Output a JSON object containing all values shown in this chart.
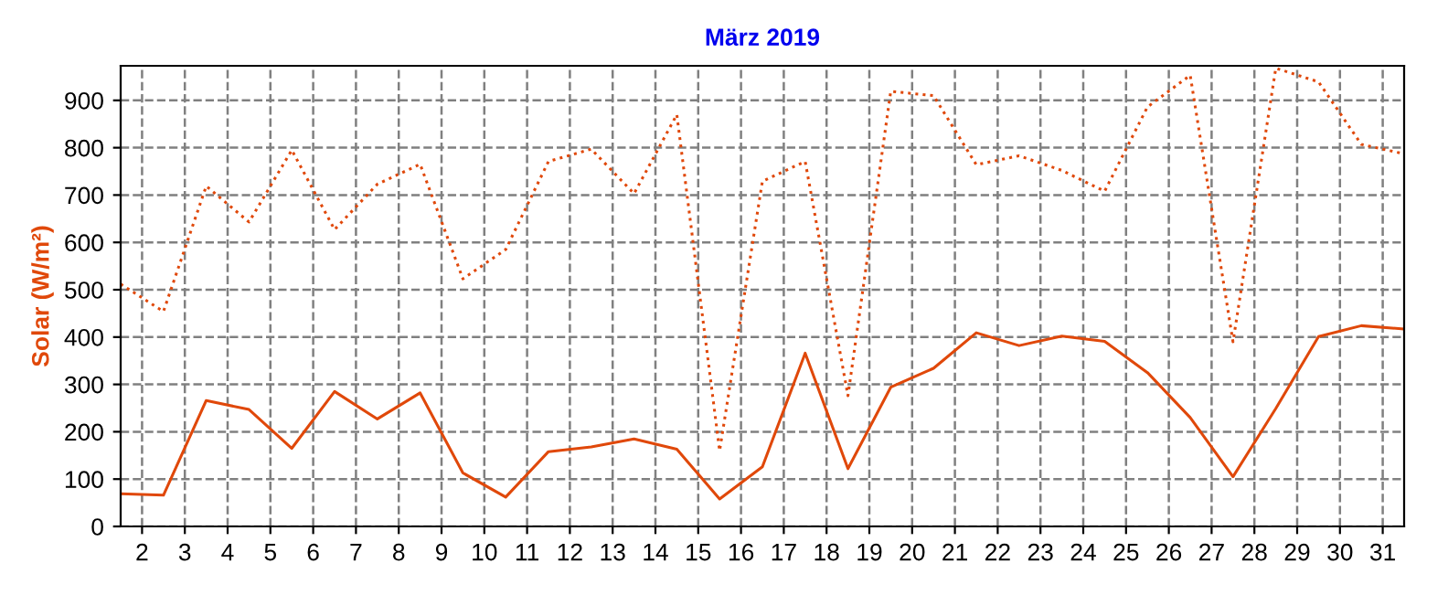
{
  "chart_data": {
    "type": "line",
    "title": "März 2019",
    "ylabel": "Solar (W/m²)",
    "x": [
      1.5,
      2.5,
      3.5,
      4.5,
      5.5,
      6.5,
      7.5,
      8.5,
      9.5,
      10.5,
      11.5,
      12.5,
      13.5,
      14.5,
      15.5,
      16.5,
      17.5,
      18.5,
      19.5,
      20.5,
      21.5,
      22.5,
      23.5,
      24.5,
      25.5,
      26.5,
      27.5,
      28.5,
      29.5,
      30.5,
      31.5
    ],
    "series": [
      {
        "color": "#e0480a",
        "line_style": "dotted",
        "values": [
          512,
          454,
          719,
          643,
          795,
          627,
          723,
          765,
          523,
          585,
          771,
          797,
          703,
          870,
          160,
          729,
          771,
          276,
          919,
          910,
          764,
          783,
          752,
          708,
          886,
          953,
          390,
          968,
          939,
          807,
          787
        ]
      },
      {
        "color": "#e0480a",
        "line_style": "solid",
        "values": [
          69,
          66,
          266,
          247,
          165,
          285,
          227,
          282,
          113,
          62,
          158,
          168,
          185,
          163,
          58,
          126,
          366,
          122,
          294,
          334,
          409,
          382,
          402,
          391,
          325,
          230,
          105,
          249,
          401,
          424,
          417
        ]
      }
    ],
    "xlim": [
      1.5,
      31.5
    ],
    "xticks": [
      2,
      3,
      4,
      5,
      6,
      7,
      8,
      9,
      10,
      11,
      12,
      13,
      14,
      15,
      16,
      17,
      18,
      19,
      20,
      21,
      22,
      23,
      24,
      25,
      26,
      27,
      28,
      29,
      30,
      31
    ],
    "ylim": [
      0,
      973
    ],
    "yticks": [
      0,
      100,
      200,
      300,
      400,
      500,
      600,
      700,
      800,
      900
    ],
    "grid": true
  }
}
